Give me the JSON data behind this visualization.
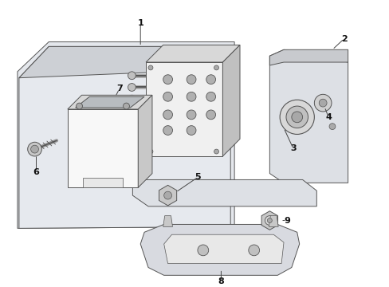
{
  "bg_color": "#ffffff",
  "line_color": "#555555",
  "plate_fill": "#e8eaed",
  "box_front": "#f5f5f5",
  "box_side": "#d0d0d0",
  "box_top": "#c8c8c8",
  "figsize": [
    4.89,
    3.6
  ],
  "dpi": 100
}
